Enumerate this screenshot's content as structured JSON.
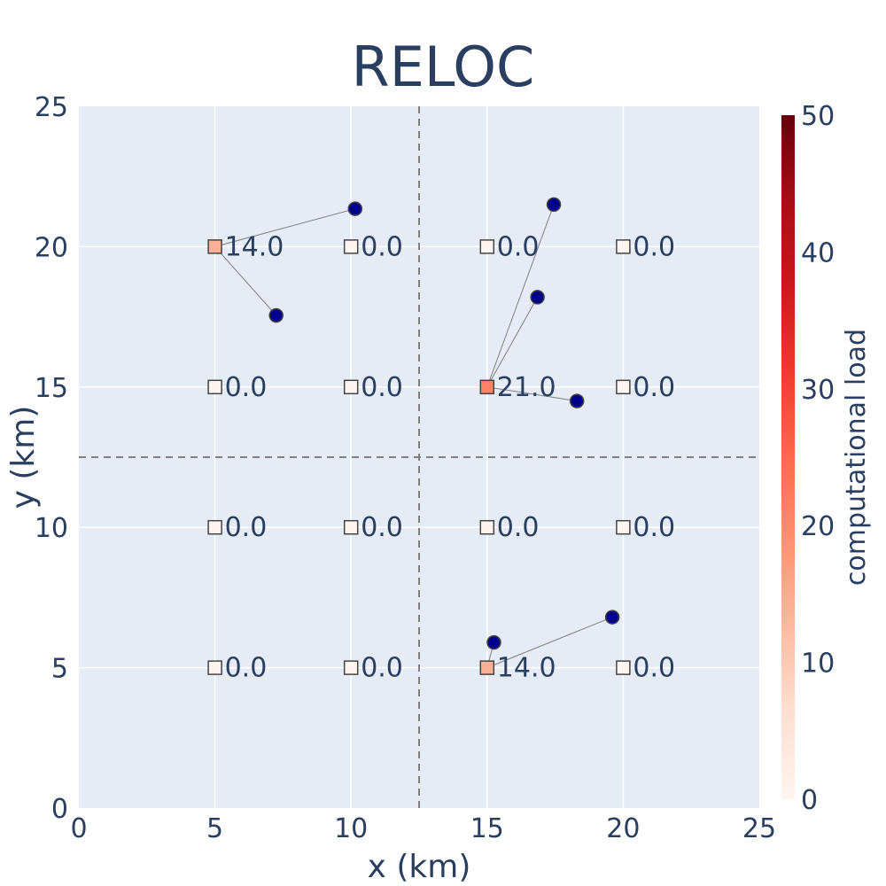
{
  "chart_data": {
    "type": "scatter",
    "title": "RELOC",
    "xlabel": "x (km)",
    "ylabel": "y (km)",
    "xlim": [
      0,
      25
    ],
    "ylim": [
      0,
      25
    ],
    "xticks": [
      "0",
      "5",
      "10",
      "15",
      "20",
      "25"
    ],
    "yticks": [
      "0",
      "5",
      "10",
      "15",
      "20",
      "25"
    ],
    "grid": true,
    "divider_lines": {
      "x": 12.5,
      "y": 12.5
    },
    "colors": {
      "plot_bg": "#e5ecf6",
      "grid": "#ffffff",
      "text": "#2a3f5f",
      "user_marker": "#00008b",
      "divider": "#808080",
      "link": "#808080"
    },
    "colorbar": {
      "title": "computational load",
      "range": [
        0,
        50
      ],
      "ticks": [
        "0",
        "10",
        "20",
        "30",
        "40",
        "50"
      ],
      "colorscale": [
        "#fff5f0",
        "#fee0d2",
        "#fcbba1",
        "#fc9272",
        "#fb6a4a",
        "#ef3b2c",
        "#cb181d",
        "#a50f15",
        "#67000d"
      ]
    },
    "servers": [
      {
        "x": 5,
        "y": 20,
        "load": 14.0,
        "label": "14.0"
      },
      {
        "x": 10,
        "y": 20,
        "load": 0.0,
        "label": "0.0"
      },
      {
        "x": 15,
        "y": 20,
        "load": 0.0,
        "label": "0.0"
      },
      {
        "x": 20,
        "y": 20,
        "load": 0.0,
        "label": "0.0"
      },
      {
        "x": 5,
        "y": 15,
        "load": 0.0,
        "label": "0.0"
      },
      {
        "x": 10,
        "y": 15,
        "load": 0.0,
        "label": "0.0"
      },
      {
        "x": 15,
        "y": 15,
        "load": 21.0,
        "label": "21.0"
      },
      {
        "x": 20,
        "y": 15,
        "load": 0.0,
        "label": "0.0"
      },
      {
        "x": 5,
        "y": 10,
        "load": 0.0,
        "label": "0.0"
      },
      {
        "x": 10,
        "y": 10,
        "load": 0.0,
        "label": "0.0"
      },
      {
        "x": 15,
        "y": 10,
        "load": 0.0,
        "label": "0.0"
      },
      {
        "x": 20,
        "y": 10,
        "load": 0.0,
        "label": "0.0"
      },
      {
        "x": 5,
        "y": 5,
        "load": 0.0,
        "label": "0.0"
      },
      {
        "x": 10,
        "y": 5,
        "load": 0.0,
        "label": "0.0"
      },
      {
        "x": 15,
        "y": 5,
        "load": 14.0,
        "label": "14.0"
      },
      {
        "x": 20,
        "y": 5,
        "load": 0.0,
        "label": "0.0"
      }
    ],
    "users": [
      {
        "x": 10.15,
        "y": 21.35,
        "server": [
          5,
          20
        ]
      },
      {
        "x": 7.25,
        "y": 17.55,
        "server": [
          5,
          20
        ]
      },
      {
        "x": 17.45,
        "y": 21.5,
        "server": [
          15,
          15
        ]
      },
      {
        "x": 16.85,
        "y": 18.2,
        "server": [
          15,
          15
        ]
      },
      {
        "x": 18.3,
        "y": 14.5,
        "server": [
          15,
          15
        ]
      },
      {
        "x": 15.25,
        "y": 5.9,
        "server": [
          15,
          5
        ]
      },
      {
        "x": 19.6,
        "y": 6.8,
        "server": [
          15,
          5
        ]
      }
    ]
  }
}
